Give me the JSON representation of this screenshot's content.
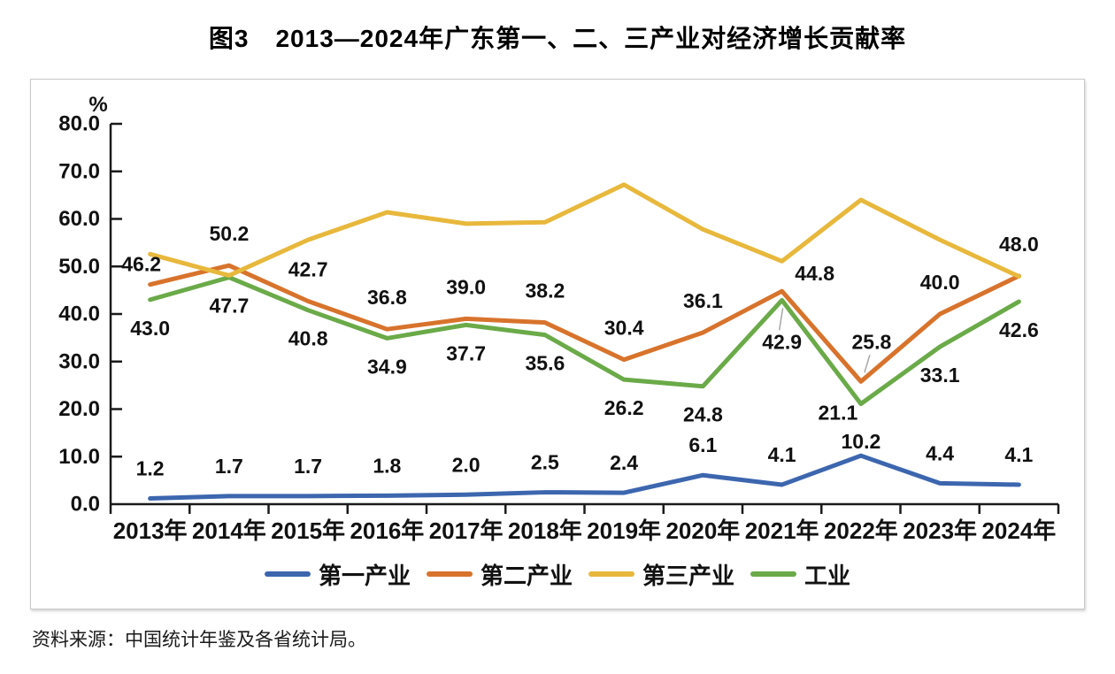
{
  "page": {
    "title_prefix": "图3",
    "title_text": "2013—2024年广东第一、二、三产业对经济增长贡献率",
    "source_note": "资料来源：中国统计年鉴及各省统计局。"
  },
  "chart_data": {
    "type": "line",
    "title": "图3　2013—2024年广东第一、二、三产业对经济增长贡献率",
    "unit": "%",
    "ylabel": "%",
    "xlabel": "",
    "ylim": [
      0,
      80
    ],
    "ytick_step": 10,
    "ytick_decimals": 1,
    "grid": false,
    "legend_position": "bottom-center",
    "axis_color": "#1a1a1a",
    "data_label_color": "#111111",
    "categories": [
      "2013年",
      "2014年",
      "2015年",
      "2016年",
      "2017年",
      "2018年",
      "2019年",
      "2020年",
      "2021年",
      "2022年",
      "2023年",
      "2024年"
    ],
    "series": [
      {
        "key": "primary-industry",
        "name": "第一产业",
        "color": "#3C66AE",
        "values": [
          1.2,
          1.7,
          1.7,
          1.8,
          2.0,
          2.5,
          2.4,
          6.1,
          4.1,
          10.2,
          4.4,
          4.1
        ],
        "labels_visible": true
      },
      {
        "key": "secondary-industry",
        "name": "第二产业",
        "color": "#D8732C",
        "values": [
          46.2,
          50.2,
          42.7,
          36.8,
          39.0,
          38.2,
          30.4,
          36.1,
          44.8,
          25.8,
          40.0,
          48.0
        ],
        "labels_visible": true
      },
      {
        "key": "tertiary-industry",
        "name": "第三产业",
        "color": "#E8B83C",
        "values": [
          52.6,
          48.1,
          55.6,
          61.4,
          59.0,
          59.3,
          67.2,
          57.8,
          51.1,
          64.0,
          55.6,
          47.9
        ],
        "labels_visible": false
      },
      {
        "key": "industry",
        "name": "工业",
        "color": "#6AAA48",
        "values": [
          43.0,
          47.7,
          40.8,
          34.9,
          37.7,
          35.6,
          26.2,
          24.8,
          42.9,
          21.1,
          33.1,
          42.6
        ],
        "labels_visible": true
      }
    ]
  }
}
